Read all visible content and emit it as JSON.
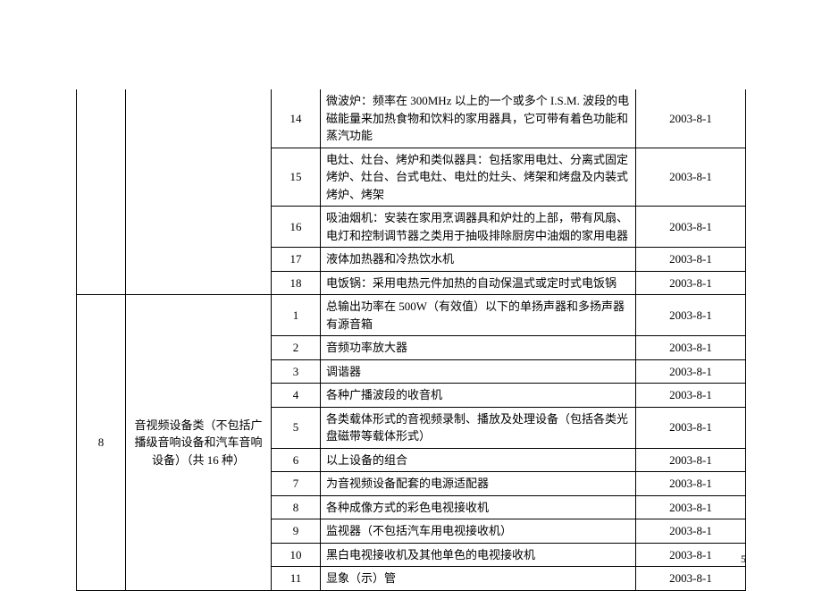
{
  "page_number": "5",
  "colors": {
    "background": "#ffffff",
    "text": "#000000",
    "border": "#000000"
  },
  "table": {
    "top_group": {
      "rows": [
        {
          "idx": "14",
          "desc": "微波炉：频率在 300MHz 以上的一个或多个 I.S.M. 波段的电磁能量来加热食物和饮料的家用器具，它可带有着色功能和蒸汽功能",
          "date": "2003-8-1"
        },
        {
          "idx": "15",
          "desc": "电灶、灶台、烤炉和类似器具：包括家用电灶、分离式固定烤炉、灶台、台式电灶、电灶的灶头、烤架和烤盘及内装式烤炉、烤架",
          "date": "2003-8-1"
        },
        {
          "idx": "16",
          "desc": "吸油烟机：安装在家用烹调器具和炉灶的上部，带有风扇、电灯和控制调节器之类用于抽吸排除厨房中油烟的家用电器",
          "date": "2003-8-1"
        },
        {
          "idx": "17",
          "desc": "液体加热器和冷热饮水机",
          "date": "2003-8-1"
        },
        {
          "idx": "18",
          "desc": "电饭锅：采用电热元件加热的自动保温式或定时式电饭锅",
          "date": "2003-8-1"
        }
      ]
    },
    "group8": {
      "cat_idx": "8",
      "cat_name": "音视频设备类（不包括广播级音响设备和汽车音响设备）（共 16 种）",
      "rows": [
        {
          "idx": "1",
          "desc": "总输出功率在 500W（有效值）以下的单扬声器和多扬声器有源音箱",
          "date": "2003-8-1"
        },
        {
          "idx": "2",
          "desc": "音频功率放大器",
          "date": "2003-8-1"
        },
        {
          "idx": "3",
          "desc": "调谐器",
          "date": "2003-8-1"
        },
        {
          "idx": "4",
          "desc": "各种广播波段的收音机",
          "date": "2003-8-1"
        },
        {
          "idx": "5",
          "desc": "各类载体形式的音视频录制、播放及处理设备（包括各类光盘磁带等载体形式）",
          "date": "2003-8-1"
        },
        {
          "idx": "6",
          "desc": "以上设备的组合",
          "date": "2003-8-1"
        },
        {
          "idx": "7",
          "desc": "为音视频设备配套的电源适配器",
          "date": "2003-8-1"
        },
        {
          "idx": "8",
          "desc": "各种成像方式的彩色电视接收机",
          "date": "2003-8-1"
        },
        {
          "idx": "9",
          "desc": "监视器（不包括汽车用电视接收机）",
          "date": "2003-8-1"
        },
        {
          "idx": "10",
          "desc": "黑白电视接收机及其他单色的电视接收机",
          "date": "2003-8-1"
        },
        {
          "idx": "11",
          "desc": "显象（示）管",
          "date": "2003-8-1"
        }
      ]
    }
  }
}
